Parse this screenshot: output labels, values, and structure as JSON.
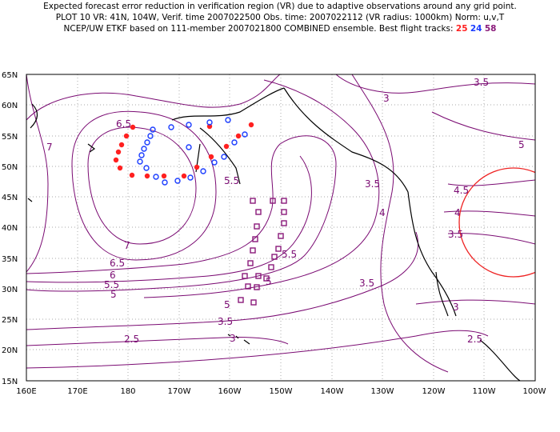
{
  "header": {
    "line1": "Expected forecast error reduction in verification region (VR) due to adaptive observations around any grid point.",
    "line2": "PLOT 10 VR: 41N, 104W, Verif. time 2007022500 Obs. time: 2007022112 (VR radius: 1000km) Norm: u,v,T",
    "line3_prefix": "NCEP/UW ETKF based on 111-member 2007021800 COMBINED ensemble.  Best flight tracks: ",
    "track_red": "25",
    "track_blue": "24",
    "track_purple": "58"
  },
  "map": {
    "lat_labels": [
      "65N",
      "60N",
      "55N",
      "50N",
      "45N",
      "40N",
      "35N",
      "30N",
      "25N",
      "20N",
      "15N"
    ],
    "lon_labels": [
      "160E",
      "170E",
      "180",
      "170W",
      "160W",
      "150W",
      "140W",
      "130W",
      "120W",
      "110W",
      "100W"
    ],
    "contour_labels": [
      "3.5",
      "3",
      "5",
      "4.5",
      "4",
      "3.5",
      "5.5",
      "6.5",
      "7",
      "7",
      "6.5",
      "6",
      "5.5",
      "5",
      "5.5",
      "5",
      "3.5",
      "4",
      "3.5",
      "3",
      "2.5",
      "3",
      "2.5",
      "3.5",
      "5"
    ],
    "colors": {
      "contour": "#7a0a72",
      "red_track": "#ff2020",
      "blue_track": "#1a3cff",
      "purple_track": "#8a1a7a",
      "vr_circle": "#ee2222"
    }
  }
}
